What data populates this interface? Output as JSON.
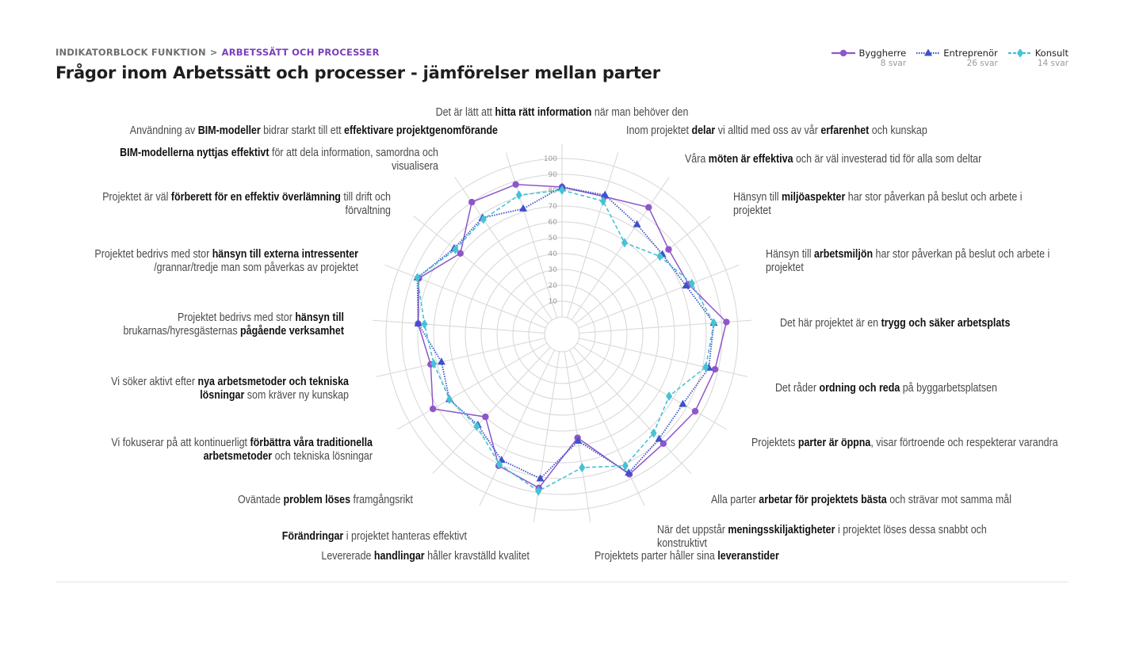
{
  "breadcrumb": {
    "root": "INDIKATORBLOCK FUNKTION",
    "separator": ">",
    "current": "ARBETSSÄTT OCH PROCESSER"
  },
  "title": "Frågor inom Arbetssätt och processer - jämförelser mellan parter",
  "legend": [
    {
      "name": "Byggherre",
      "count": "8 svar",
      "color": "#8e57c9",
      "marker": "circle",
      "line": "solid"
    },
    {
      "name": "Entreprenör",
      "count": "26 svar",
      "color": "#3f51c9",
      "marker": "triangle",
      "line": "dotted"
    },
    {
      "name": "Konsult",
      "count": "14 svar",
      "color": "#45c2d6",
      "marker": "diamond",
      "line": "dashed"
    }
  ],
  "chart_data": {
    "type": "radar",
    "rlim": [
      0,
      100
    ],
    "ticks": [
      "10",
      "20",
      "30",
      "40",
      "50",
      "60",
      "70",
      "80",
      "90",
      "100"
    ],
    "grid": true,
    "legend_position": "top-right",
    "categories": [
      [
        {
          "t": "Det är lätt att ",
          "b": false
        },
        {
          "t": "hitta rätt information",
          "b": true
        },
        {
          "t": " när man behöver den",
          "b": false
        }
      ],
      [
        {
          "t": "Inom projektet ",
          "b": false
        },
        {
          "t": "delar",
          "b": true
        },
        {
          "t": " vi alltid med oss av vår ",
          "b": false
        },
        {
          "t": "erfarenhet",
          "b": true
        },
        {
          "t": " och kunskap",
          "b": false
        }
      ],
      [
        {
          "t": "Våra ",
          "b": false
        },
        {
          "t": "möten är effektiva",
          "b": true
        },
        {
          "t": " och är väl investerad tid för alla som deltar",
          "b": false
        }
      ],
      [
        {
          "t": "Hänsyn till ",
          "b": false
        },
        {
          "t": "miljöaspekter",
          "b": true
        },
        {
          "t": " har stor påverkan på beslut och arbete i projektet",
          "b": false
        }
      ],
      [
        {
          "t": "Hänsyn till ",
          "b": false
        },
        {
          "t": "arbetsmiljön",
          "b": true
        },
        {
          "t": " har stor påverkan på beslut och arbete i projektet",
          "b": false
        }
      ],
      [
        {
          "t": "Det här projektet är en ",
          "b": false
        },
        {
          "t": "trygg och säker arbetsplats",
          "b": true
        }
      ],
      [
        {
          "t": "Det råder ",
          "b": false
        },
        {
          "t": "ordning och reda",
          "b": true
        },
        {
          "t": " på byggarbetsplatsen",
          "b": false
        }
      ],
      [
        {
          "t": "Projektets ",
          "b": false
        },
        {
          "t": "parter är öppna",
          "b": true
        },
        {
          "t": ", visar förtroende och respekterar varandra",
          "b": false
        }
      ],
      [
        {
          "t": "Alla parter ",
          "b": false
        },
        {
          "t": "arbetar för projektets bästa",
          "b": true
        },
        {
          "t": " och strävar mot samma mål",
          "b": false
        }
      ],
      [
        {
          "t": "När det uppstår ",
          "b": false
        },
        {
          "t": "meningsskiljaktigheter",
          "b": true
        },
        {
          "t": " i projektet löses dessa snabbt och konstruktivt",
          "b": false
        }
      ],
      [
        {
          "t": "Projektets parter håller sina ",
          "b": false
        },
        {
          "t": "leveranstider",
          "b": true
        }
      ],
      [
        {
          "t": "Levererade ",
          "b": false
        },
        {
          "t": "handlingar",
          "b": true
        },
        {
          "t": " håller kravställd kvalitet",
          "b": false
        }
      ],
      [
        {
          "t": "Förändringar",
          "b": true
        },
        {
          "t": " i projektet hanteras effektivt",
          "b": false
        }
      ],
      [
        {
          "t": "Oväntade ",
          "b": false
        },
        {
          "t": "problem löses",
          "b": true
        },
        {
          "t": " framgångsrikt",
          "b": false
        }
      ],
      [
        {
          "t": "Vi fokuserar på att kontinuerligt ",
          "b": false
        },
        {
          "t": "förbättra våra traditionella arbetsmetoder",
          "b": true
        },
        {
          "t": " och tekniska lösningar",
          "b": false
        }
      ],
      [
        {
          "t": "Vi söker aktivt efter ",
          "b": false
        },
        {
          "t": "nya arbetsmetoder och tekniska lösningar",
          "b": true
        },
        {
          "t": " som kräver ny kunskap",
          "b": false
        }
      ],
      [
        {
          "t": "Projektet bedrivs med stor ",
          "b": false
        },
        {
          "t": "hänsyn till",
          "b": true
        },
        {
          "t": " brukarnas/hyresgästernas ",
          "b": false
        },
        {
          "t": "pågående verksamhet",
          "b": true
        }
      ],
      [
        {
          "t": "Projektet bedrivs med stor ",
          "b": false
        },
        {
          "t": "hänsyn till externa intressenter",
          "b": true
        },
        {
          "t": " /grannar/tredje man som påverkas av projektet",
          "b": false
        }
      ],
      [
        {
          "t": "Projektet är väl ",
          "b": false
        },
        {
          "t": "förberett för en effektiv överlämning",
          "b": true
        },
        {
          "t": " till drift och förvaltning",
          "b": false
        }
      ],
      [
        {
          "t": "BIM-modellerna nyttjas effektivt",
          "b": true
        },
        {
          "t": " för att dela information, samordna och visualisera",
          "b": false
        }
      ],
      [
        {
          "t": "Användning av ",
          "b": false
        },
        {
          "t": "BIM-modeller",
          "b": true
        },
        {
          "t": " bidrar starkt till ett ",
          "b": false
        },
        {
          "t": "effektivare projektgenomförande",
          "b": true
        }
      ]
    ],
    "series": [
      {
        "name": "Byggherre",
        "values": [
          82,
          80,
          86,
          75,
          75,
          93,
          88,
          86,
          83,
          87,
          55,
          87,
          81,
          60,
          83,
          74,
          80,
          86,
          71,
          90,
          88
        ]
      },
      {
        "name": "Entreprenör",
        "values": [
          82,
          81,
          73,
          70,
          73,
          85,
          84,
          77,
          79,
          86,
          57,
          81,
          77,
          67,
          71,
          67,
          80,
          87,
          76,
          78,
          72
        ]
      },
      {
        "name": "Konsult",
        "values": [
          80,
          77,
          59,
          68,
          77,
          85,
          82,
          67,
          74,
          81,
          74,
          89,
          80,
          68,
          71,
          72,
          76,
          87,
          75,
          77,
          81
        ]
      }
    ]
  }
}
